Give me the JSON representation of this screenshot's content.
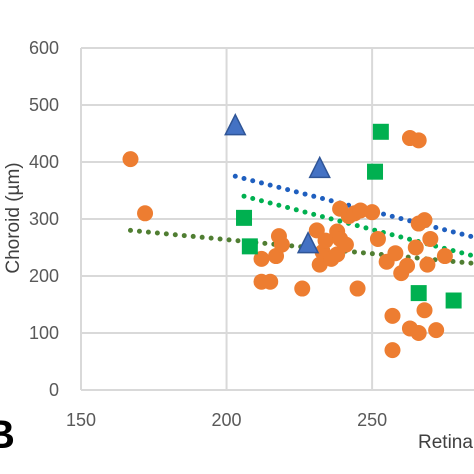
{
  "chart_data": {
    "type": "scatter",
    "panel_label": "B",
    "xlabel": "Retina",
    "ylabel": "Choroid (µm)",
    "xlim": [
      150,
      285
    ],
    "ylim": [
      0,
      600
    ],
    "x_ticks": [
      "150",
      "200",
      "250"
    ],
    "y_ticks": [
      "0",
      "100",
      "200",
      "300",
      "400",
      "500",
      "600"
    ],
    "grid": true,
    "series": [
      {
        "marker": "circle",
        "color": "#ED7D31",
        "points": [
          [
            167,
            405
          ],
          [
            172,
            310
          ],
          [
            212,
            190
          ],
          [
            212,
            230
          ],
          [
            215,
            190
          ],
          [
            217,
            235
          ],
          [
            218,
            270
          ],
          [
            219,
            255
          ],
          [
            226,
            178
          ],
          [
            231,
            280
          ],
          [
            232,
            220
          ],
          [
            233,
            242
          ],
          [
            234,
            262
          ],
          [
            236,
            230
          ],
          [
            238,
            238
          ],
          [
            238,
            278
          ],
          [
            239,
            318
          ],
          [
            239,
            265
          ],
          [
            241,
            255
          ],
          [
            242,
            305
          ],
          [
            244,
            310
          ],
          [
            245,
            178
          ],
          [
            246,
            315
          ],
          [
            250,
            312
          ],
          [
            252,
            265
          ],
          [
            255,
            225
          ],
          [
            257,
            130
          ],
          [
            257,
            70
          ],
          [
            258,
            240
          ],
          [
            260,
            205
          ],
          [
            262,
            218
          ],
          [
            263,
            108
          ],
          [
            263,
            442
          ],
          [
            265,
            250
          ],
          [
            266,
            100
          ],
          [
            266,
            438
          ],
          [
            266,
            292
          ],
          [
            268,
            298
          ],
          [
            268,
            140
          ],
          [
            269,
            220
          ],
          [
            270,
            265
          ],
          [
            272,
            105
          ],
          [
            275,
            235
          ]
        ]
      },
      {
        "marker": "square",
        "color": "#00B050",
        "points": [
          [
            206,
            302
          ],
          [
            208,
            252
          ],
          [
            251,
            383
          ],
          [
            253,
            453
          ],
          [
            266,
            170
          ],
          [
            278,
            157
          ]
        ]
      },
      {
        "marker": "triangle",
        "color": "#4472C4",
        "points": [
          [
            203,
            462
          ],
          [
            228,
            255
          ],
          [
            232,
            387
          ]
        ]
      }
    ],
    "trendlines": [
      {
        "color": "#1F5FBF",
        "x": [
          203,
          285
        ],
        "y": [
          375,
          268
        ]
      },
      {
        "color": "#00B050",
        "x": [
          206,
          285
        ],
        "y": [
          340,
          235
        ]
      },
      {
        "color": "#507E32",
        "x": [
          167,
          285
        ],
        "y": [
          280,
          222
        ]
      }
    ]
  }
}
